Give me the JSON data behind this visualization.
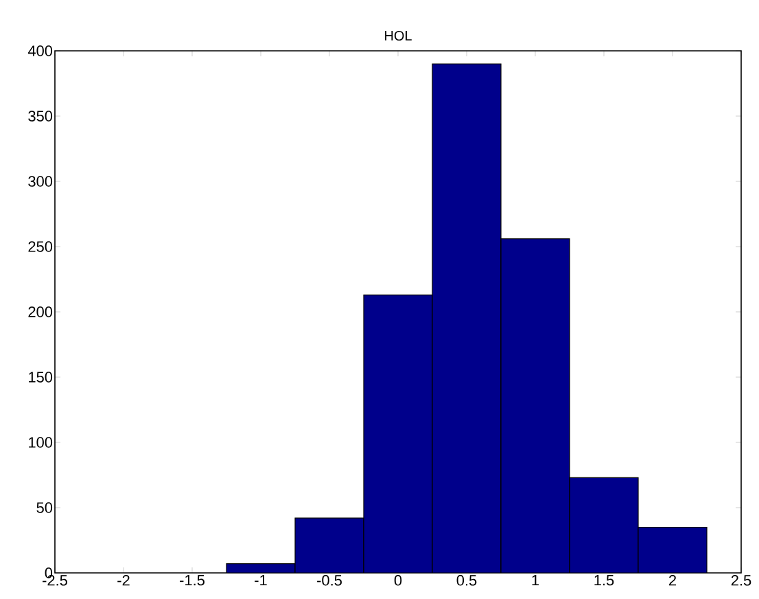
{
  "chart_data": {
    "type": "histogram",
    "title": "HOL",
    "bins": [
      -1.25,
      -0.75,
      -0.25,
      0.25,
      0.75,
      1.25,
      1.75,
      2.25
    ],
    "values": [
      7,
      42,
      213,
      390,
      256,
      73,
      35
    ],
    "color": "#00008b",
    "xlim": [
      -2.5,
      2.5
    ],
    "xticks": [
      -2.5,
      -2,
      -1.5,
      -1,
      -0.5,
      0,
      0.5,
      1,
      1.5,
      2,
      2.5
    ],
    "ylim": [
      0,
      400
    ],
    "yticks": [
      0,
      50,
      100,
      150,
      200,
      250,
      300,
      350,
      400
    ]
  }
}
